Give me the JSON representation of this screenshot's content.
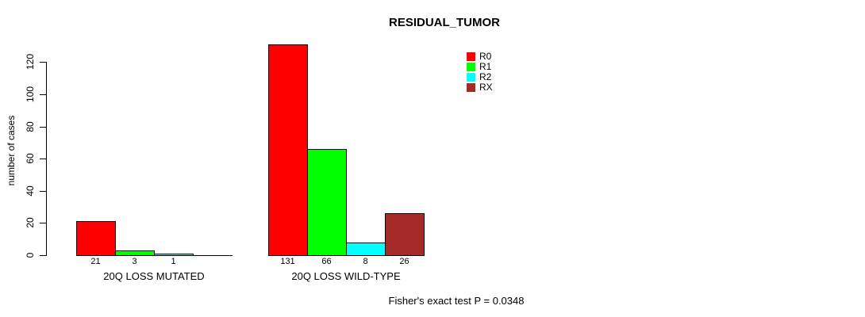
{
  "chart_data": {
    "type": "bar",
    "title": "RESIDUAL_TUMOR",
    "ylabel": "number of cases",
    "xlabel": "",
    "footnote": "Fisher's exact test P = 0.0348",
    "yticks": [
      0,
      20,
      40,
      60,
      80,
      100,
      120
    ],
    "ylim": [
      0,
      131
    ],
    "grid": false,
    "legend_position": "top-right",
    "legend": [
      {
        "label": "R0",
        "color": "#FF0000"
      },
      {
        "label": "R1",
        "color": "#00FF00"
      },
      {
        "label": "R2",
        "color": "#00FFFF"
      },
      {
        "label": "RX",
        "color": "#A52A2A"
      }
    ],
    "categories": [
      "20Q LOSS MUTATED",
      "20Q LOSS WILD-TYPE"
    ],
    "series": [
      {
        "name": "R0",
        "values": [
          21,
          131
        ]
      },
      {
        "name": "R1",
        "values": [
          3,
          66
        ]
      },
      {
        "name": "R2",
        "values": [
          1,
          8
        ]
      },
      {
        "name": "RX",
        "values": [
          0,
          26
        ]
      }
    ],
    "bar_value_labels": [
      [
        "21",
        "3",
        "1",
        ""
      ],
      [
        "131",
        "66",
        "8",
        "26"
      ]
    ]
  }
}
